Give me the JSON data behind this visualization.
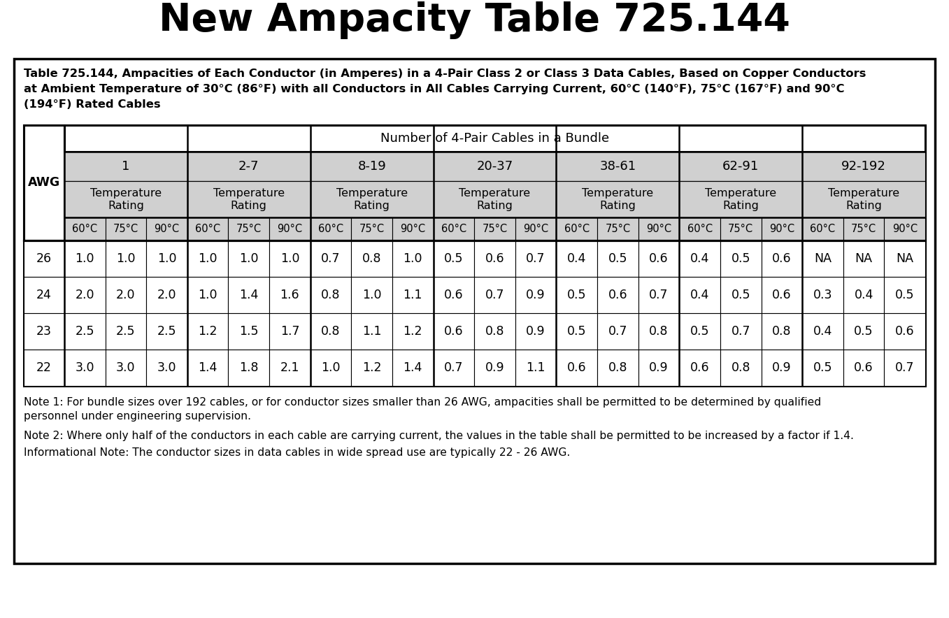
{
  "title": "New Ampacity Table 725.144",
  "subtitle_line1": "Table 725.144, Ampacities of Each Conductor (in Amperes) in a 4-Pair Class 2 or Class 3 Data Cables, Based on Copper Conductors",
  "subtitle_line2": "at Ambient Temperature of 30°C (86°F) with all Conductors in All Cables Carrying Current, 60°C (140°F), 75°C (167°F) and 90°C",
  "subtitle_line3": "(194°F) Rated Cables",
  "bundle_groups": [
    "1",
    "2-7",
    "8-19",
    "20-37",
    "38-61",
    "62-91",
    "92-192"
  ],
  "temp_labels": [
    "60°C",
    "75°C",
    "90°C"
  ],
  "awg_rows": [
    "26",
    "24",
    "23",
    "22"
  ],
  "table_data": [
    [
      "1.0",
      "1.0",
      "1.0",
      "1.0",
      "1.0",
      "1.0",
      "0.7",
      "0.8",
      "1.0",
      "0.5",
      "0.6",
      "0.7",
      "0.4",
      "0.5",
      "0.6",
      "0.4",
      "0.5",
      "0.6",
      "NA",
      "NA",
      "NA"
    ],
    [
      "2.0",
      "2.0",
      "2.0",
      "1.0",
      "1.4",
      "1.6",
      "0.8",
      "1.0",
      "1.1",
      "0.6",
      "0.7",
      "0.9",
      "0.5",
      "0.6",
      "0.7",
      "0.4",
      "0.5",
      "0.6",
      "0.3",
      "0.4",
      "0.5"
    ],
    [
      "2.5",
      "2.5",
      "2.5",
      "1.2",
      "1.5",
      "1.7",
      "0.8",
      "1.1",
      "1.2",
      "0.6",
      "0.8",
      "0.9",
      "0.5",
      "0.7",
      "0.8",
      "0.5",
      "0.7",
      "0.8",
      "0.4",
      "0.5",
      "0.6"
    ],
    [
      "3.0",
      "3.0",
      "3.0",
      "1.4",
      "1.8",
      "2.1",
      "1.0",
      "1.2",
      "1.4",
      "0.7",
      "0.9",
      "1.1",
      "0.6",
      "0.8",
      "0.9",
      "0.6",
      "0.8",
      "0.9",
      "0.5",
      "0.6",
      "0.7"
    ]
  ],
  "note1a": "Note 1: For bundle sizes over 192 cables, or for conductor sizes smaller than 26 AWG, ampacities shall be permitted to be determined by qualified",
  "note1b": "personnel under engineering supervision.",
  "note2": "Note 2: Where only half of the conductors in each cable are carrying current, the values in the table shall be permitted to be increased by a factor if 1.4.",
  "note3": "Informational Note: The conductor sizes in data cables in wide spread use are typically 22 - 26 AWG.",
  "bg_color": "#ffffff",
  "header_bg": "#d0d0d0",
  "white": "#ffffff",
  "border_color": "#000000",
  "text_color": "#000000",
  "title_fontsize": 40,
  "subtitle_fontsize": 11.8,
  "table_label_fontsize": 12.5,
  "bundle_name_fontsize": 13,
  "temp_rating_fontsize": 11.5,
  "temp_label_fontsize": 10.5,
  "data_fontsize": 12.5,
  "note_fontsize": 11.2
}
